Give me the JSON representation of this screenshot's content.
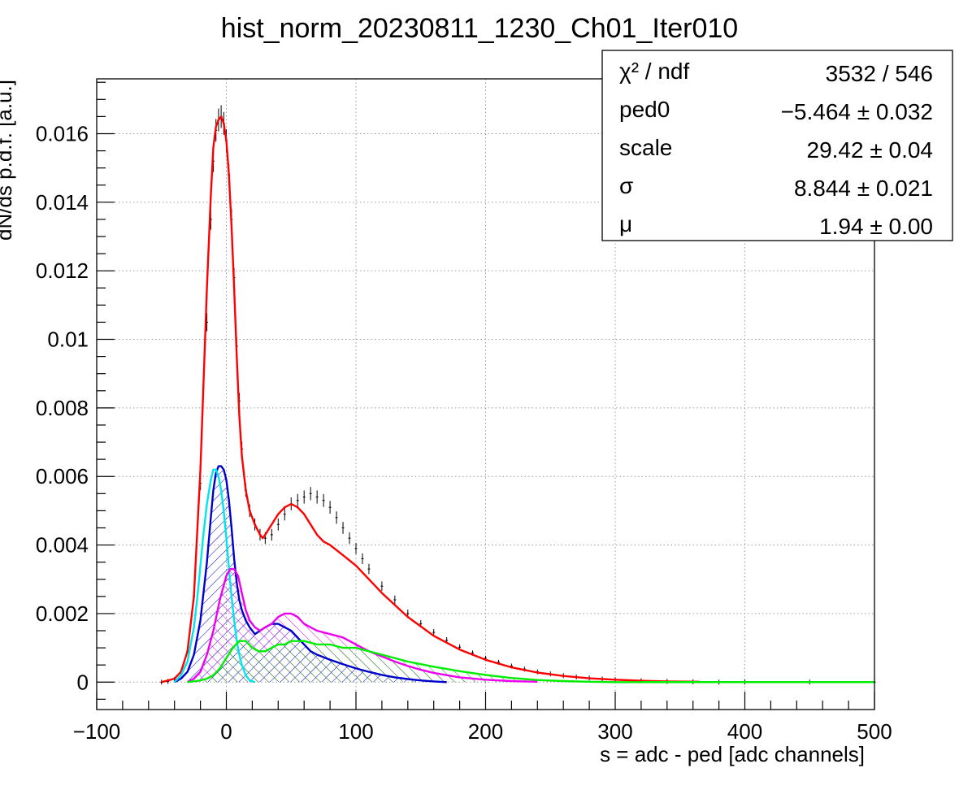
{
  "chart_data": {
    "type": "line",
    "title": "hist_norm_20230811_1230_Ch01_Iter010",
    "xlabel": "s = adc - ped [adc channels]",
    "ylabel": "dN/ds p.d.f. [a.u.]",
    "xlim": [
      -100,
      500
    ],
    "ylim": [
      -0.0008,
      0.0176
    ],
    "grid": true,
    "x_ticks": [
      -100,
      0,
      100,
      200,
      300,
      400,
      500
    ],
    "x_tick_labels": [
      "−100",
      "0",
      "100",
      "200",
      "300",
      "400",
      "500"
    ],
    "y_ticks": [
      0,
      0.002,
      0.004,
      0.006,
      0.008,
      0.01,
      0.012,
      0.014,
      0.016
    ],
    "y_tick_labels": [
      "0",
      "0.002",
      "0.004",
      "0.006",
      "0.008",
      "0.01",
      "0.012",
      "0.014",
      "0.016"
    ],
    "stats_box": {
      "placement": "top-right",
      "rows": [
        {
          "name": "χ² / ndf",
          "value": "3532 / 546"
        },
        {
          "name": "ped0",
          "value": "−5.464 ± 0.032"
        },
        {
          "name": "scale",
          "value": "29.42 ± 0.04"
        },
        {
          "name": "σ",
          "value": "8.844 ± 0.021"
        },
        {
          "name": "μ",
          "value": "1.94 ± 0.00"
        }
      ]
    },
    "data_points": {
      "color": "#000000",
      "x": [
        -50,
        -45,
        -40,
        -35,
        -30,
        -25,
        -20,
        -15,
        -12,
        -10,
        -8,
        -6,
        -4,
        -2,
        0,
        2,
        4,
        6,
        8,
        10,
        12,
        15,
        18,
        22,
        26,
        30,
        35,
        40,
        45,
        50,
        55,
        60,
        65,
        70,
        75,
        80,
        85,
        90,
        95,
        100,
        105,
        110,
        120,
        130,
        140,
        150,
        160,
        170,
        180,
        190,
        200,
        210,
        220,
        230,
        240,
        250,
        260,
        270,
        280,
        290,
        300,
        320,
        340,
        360,
        380,
        400,
        450,
        500
      ],
      "y": [
        0,
        2e-05,
        8e-05,
        0.0003,
        0.0009,
        0.0025,
        0.0058,
        0.0105,
        0.0135,
        0.0152,
        0.0161,
        0.0164,
        0.0165,
        0.0163,
        0.0158,
        0.0148,
        0.0135,
        0.0118,
        0.0098,
        0.0082,
        0.0068,
        0.0056,
        0.005,
        0.0046,
        0.0043,
        0.0042,
        0.0043,
        0.0046,
        0.0049,
        0.0052,
        0.0053,
        0.0054,
        0.0055,
        0.0054,
        0.0053,
        0.0051,
        0.0048,
        0.0045,
        0.0042,
        0.0039,
        0.0036,
        0.0033,
        0.0028,
        0.0024,
        0.002,
        0.0017,
        0.00145,
        0.00122,
        0.00102,
        0.00085,
        0.0007,
        0.00058,
        0.00047,
        0.00038,
        0.0003,
        0.00024,
        0.00019,
        0.00015,
        0.00012,
        9e-05,
        7e-05,
        4e-05,
        2e-05,
        1e-05,
        0,
        0,
        0,
        0
      ]
    },
    "series": [
      {
        "color": "#ff0000",
        "fill": false,
        "x": [
          -50,
          -40,
          -35,
          -30,
          -25,
          -20,
          -15,
          -12,
          -10,
          -8,
          -6,
          -4,
          -2,
          0,
          2,
          4,
          6,
          8,
          10,
          12,
          15,
          18,
          22,
          26,
          28,
          30,
          35,
          40,
          45,
          50,
          55,
          60,
          65,
          70,
          75,
          80,
          90,
          100,
          110,
          120,
          140,
          160,
          180,
          200,
          220,
          240,
          260,
          280,
          300,
          320,
          340,
          365
        ],
        "y": [
          0,
          0.0001,
          0.0003,
          0.0009,
          0.0025,
          0.0062,
          0.0115,
          0.0142,
          0.0156,
          0.0162,
          0.0164,
          0.0165,
          0.0163,
          0.0158,
          0.0148,
          0.0133,
          0.0115,
          0.0095,
          0.0078,
          0.0066,
          0.0056,
          0.005,
          0.0046,
          0.0043,
          0.0042,
          0.0043,
          0.0046,
          0.0049,
          0.0051,
          0.0052,
          0.0051,
          0.0049,
          0.0046,
          0.0043,
          0.0041,
          0.004,
          0.0037,
          0.0034,
          0.003,
          0.0026,
          0.0019,
          0.00135,
          0.00095,
          0.00065,
          0.00043,
          0.00028,
          0.00018,
          0.00011,
          7e-05,
          4e-05,
          2e-05,
          1e-05
        ]
      },
      {
        "color": "#0000cc",
        "fill": true,
        "hatch": "hatch-blue",
        "x": [
          -40,
          -35,
          -30,
          -25,
          -20,
          -15,
          -12,
          -10,
          -8,
          -6,
          -4,
          -2,
          0,
          2,
          4,
          6,
          8,
          10,
          12,
          15,
          18,
          22,
          26,
          30,
          35,
          40,
          45,
          50,
          55,
          60,
          65,
          70,
          80,
          90,
          100,
          110,
          120,
          130,
          140,
          150,
          160,
          170
        ],
        "y": [
          0,
          0.0001,
          0.0003,
          0.0008,
          0.0018,
          0.0035,
          0.0048,
          0.0056,
          0.0061,
          0.0063,
          0.0063,
          0.0062,
          0.0059,
          0.0053,
          0.0045,
          0.0036,
          0.0029,
          0.0024,
          0.0021,
          0.0018,
          0.0016,
          0.0014,
          0.0015,
          0.0016,
          0.0017,
          0.0017,
          0.0016,
          0.0015,
          0.0013,
          0.0011,
          0.0009,
          0.0008,
          0.00065,
          0.00052,
          0.0004,
          0.0003,
          0.00021,
          0.00014,
          9e-05,
          5e-05,
          2e-05,
          0
        ]
      },
      {
        "color": "#00e5ee",
        "fill": false,
        "x": [
          -40,
          -35,
          -30,
          -25,
          -22,
          -20,
          -18,
          -15,
          -12,
          -10,
          -8,
          -6,
          -4,
          -2,
          0,
          2,
          4,
          6,
          8,
          10,
          12,
          15,
          18,
          22
        ],
        "y": [
          0,
          0.0002,
          0.0006,
          0.0016,
          0.0026,
          0.0034,
          0.0042,
          0.0052,
          0.0059,
          0.0062,
          0.0062,
          0.006,
          0.0056,
          0.005,
          0.0042,
          0.0033,
          0.0025,
          0.0018,
          0.0012,
          0.0008,
          0.0005,
          0.0002,
          5e-05,
          0
        ]
      },
      {
        "color": "#ee00ee",
        "fill": true,
        "hatch": "hatch-magenta",
        "x": [
          -30,
          -25,
          -20,
          -15,
          -10,
          -5,
          0,
          3,
          6,
          9,
          12,
          15,
          18,
          22,
          26,
          30,
          35,
          40,
          45,
          50,
          55,
          60,
          70,
          80,
          90,
          100,
          110,
          120,
          130,
          140,
          150,
          160,
          180,
          200,
          220,
          240
        ],
        "y": [
          0,
          0.0001,
          0.0003,
          0.0008,
          0.0015,
          0.0024,
          0.0031,
          0.0033,
          0.0033,
          0.0031,
          0.0026,
          0.0021,
          0.0018,
          0.0016,
          0.0015,
          0.0016,
          0.0017,
          0.0019,
          0.002,
          0.002,
          0.0019,
          0.0017,
          0.0015,
          0.0014,
          0.0013,
          0.0011,
          0.0009,
          0.00075,
          0.0006,
          0.00047,
          0.00036,
          0.00027,
          0.00014,
          7e-05,
          3e-05,
          1e-05
        ]
      },
      {
        "color": "#00ee00",
        "fill": true,
        "hatch": "hatch-green",
        "x": [
          -30,
          -20,
          -15,
          -10,
          -5,
          0,
          5,
          10,
          15,
          20,
          25,
          30,
          35,
          40,
          45,
          50,
          55,
          60,
          70,
          80,
          90,
          100,
          110,
          120,
          140,
          160,
          180,
          200,
          220,
          240,
          260,
          280,
          300,
          320
        ],
        "y": [
          0,
          5e-05,
          0.0001,
          0.0002,
          0.0004,
          0.0007,
          0.001,
          0.0012,
          0.0012,
          0.001,
          0.0009,
          0.0009,
          0.001,
          0.0011,
          0.0011,
          0.0012,
          0.0012,
          0.0012,
          0.0011,
          0.0011,
          0.001,
          0.001,
          0.0009,
          0.0008,
          0.0006,
          0.00045,
          0.00032,
          0.00021,
          0.00012,
          6e-05,
          3e-05,
          1e-05,
          0,
          0
        ]
      }
    ]
  }
}
